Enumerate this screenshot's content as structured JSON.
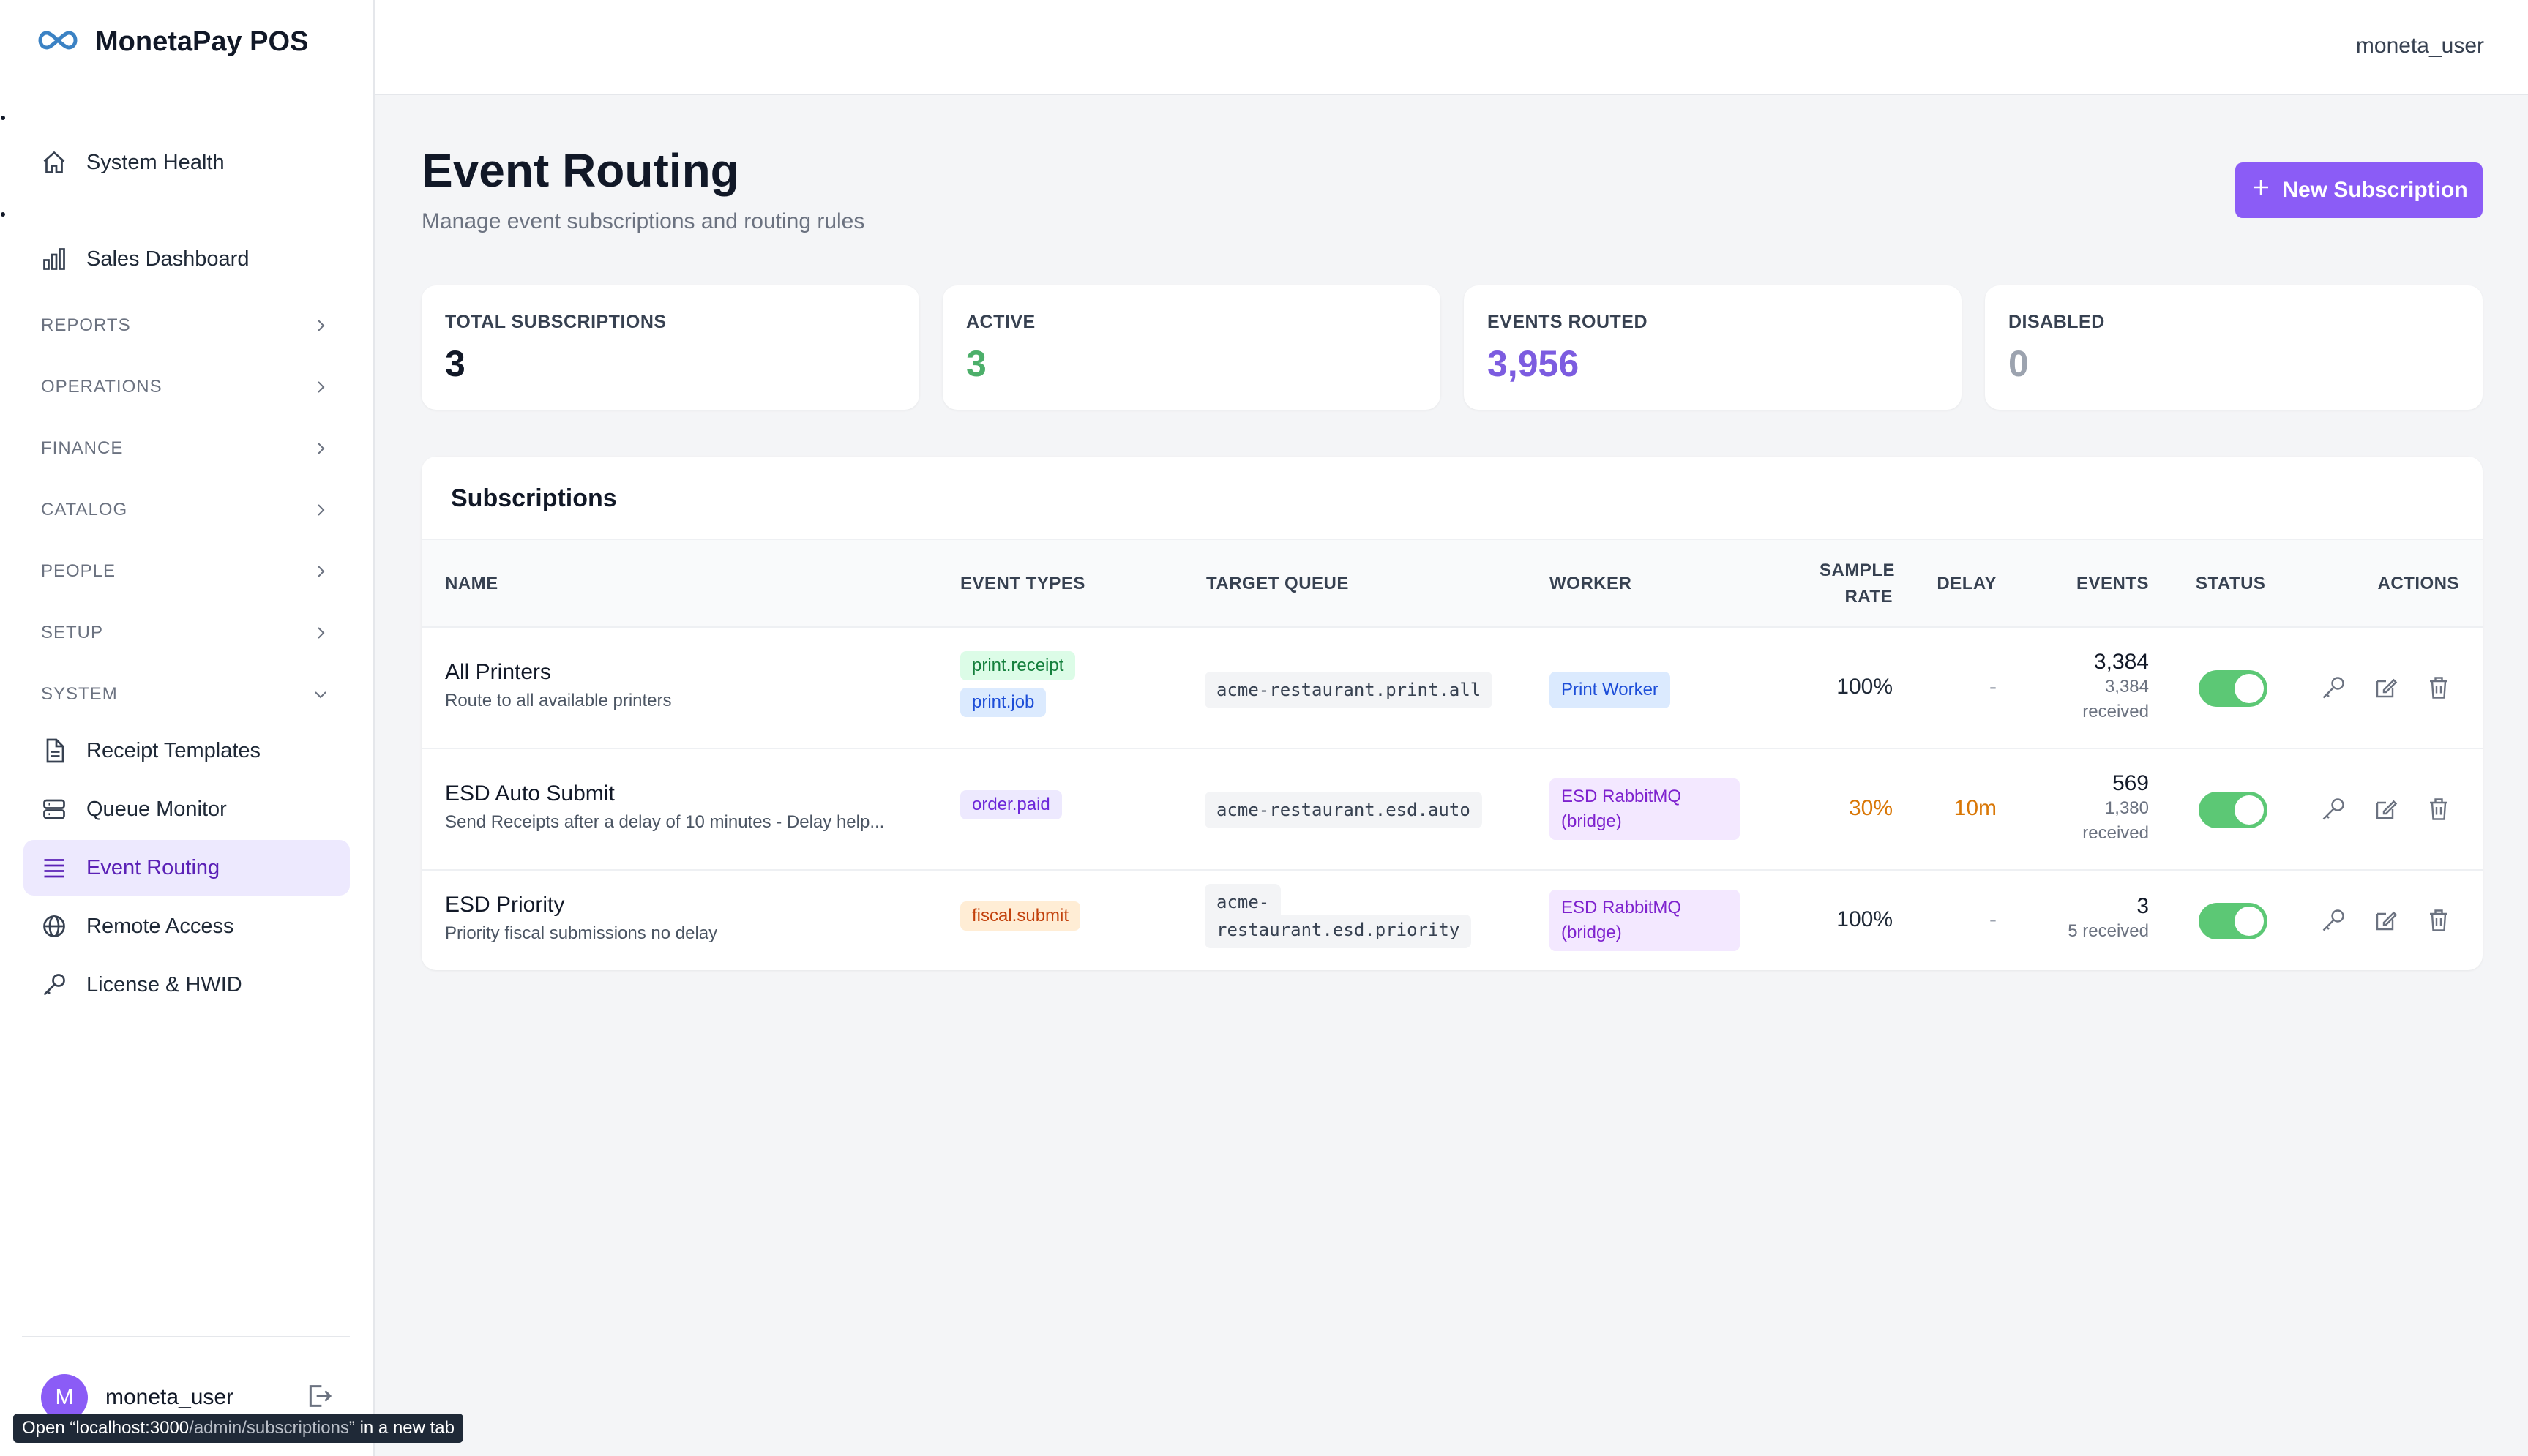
{
  "app": {
    "name": "MonetaPay POS",
    "logo_icon": "infinity-icon"
  },
  "sidebar": {
    "items_top": [
      {
        "label": "System Health",
        "icon": "home-icon"
      },
      {
        "label": "Sales Dashboard",
        "icon": "bar-chart-icon"
      }
    ],
    "sections": [
      {
        "label": "REPORTS"
      },
      {
        "label": "OPERATIONS"
      },
      {
        "label": "FINANCE"
      },
      {
        "label": "CATALOG"
      },
      {
        "label": "PEOPLE"
      },
      {
        "label": "SETUP"
      },
      {
        "label": "SYSTEM"
      }
    ],
    "system_items": [
      {
        "label": "Receipt Templates",
        "icon": "document-icon"
      },
      {
        "label": "Queue Monitor",
        "icon": "server-icon"
      },
      {
        "label": "Event Routing",
        "icon": "list-icon",
        "active": true
      },
      {
        "label": "Remote Access",
        "icon": "globe-icon"
      },
      {
        "label": "License & HWID",
        "icon": "key-icon"
      }
    ],
    "user": {
      "initial": "M",
      "name": "moneta_user"
    }
  },
  "topbar": {
    "user": "moneta_user"
  },
  "tooltip": {
    "prefix": "Open “localhost:3000",
    "path": "/admin/subscriptions",
    "suffix": "” in a new tab"
  },
  "header": {
    "title": "Event Routing",
    "subtitle": "Manage event subscriptions and routing rules",
    "new_button": "New Subscription"
  },
  "stats": [
    {
      "label": "TOTAL SUBSCRIPTIONS",
      "value": "3",
      "color": "#111827"
    },
    {
      "label": "ACTIVE",
      "value": "3",
      "color": "#4caf6a"
    },
    {
      "label": "EVENTS ROUTED",
      "value": "3,956",
      "color": "#7c5ce0"
    },
    {
      "label": "DISABLED",
      "value": "0",
      "color": "#9ca3af"
    }
  ],
  "table": {
    "title": "Subscriptions",
    "columns": {
      "name": "NAME",
      "event_types": "EVENT TYPES",
      "target_queue": "TARGET QUEUE",
      "worker": "WORKER",
      "sample_rate_1": "SAMPLE",
      "sample_rate_2": "RATE",
      "delay": "DELAY",
      "events": "EVENTS",
      "status": "STATUS",
      "actions": "ACTIONS"
    },
    "rows": [
      {
        "name": "All Printers",
        "description": "Route to all available printers",
        "event_types": [
          "print.receipt",
          "print.job"
        ],
        "target_queue_1": "acme-restaurant.print.all",
        "worker": "Print Worker",
        "sample_rate": "100%",
        "delay": "-",
        "events": "3,384",
        "received_1": "3,384",
        "received_2": "received",
        "status": "on"
      },
      {
        "name": "ESD Auto Submit",
        "description": "Send Receipts after a delay of 10 minutes - Delay help...",
        "event_types": [
          "order.paid"
        ],
        "target_queue_1": "acme-restaurant.esd.auto",
        "worker_1": "ESD RabbitMQ",
        "worker_2": "(bridge)",
        "sample_rate": "30%",
        "delay": "10m",
        "events": "569",
        "received_1": "1,380",
        "received_2": "received",
        "status": "on"
      },
      {
        "name": "ESD Priority",
        "description": "Priority fiscal submissions no delay",
        "event_types": [
          "fiscal.submit"
        ],
        "target_queue_1": "acme-",
        "target_queue_2": "restaurant.esd.priority",
        "worker_1": "ESD RabbitMQ",
        "worker_2": "(bridge)",
        "sample_rate": "100%",
        "delay": "-",
        "events": "3",
        "received_1": "5 received",
        "status": "on"
      }
    ]
  }
}
